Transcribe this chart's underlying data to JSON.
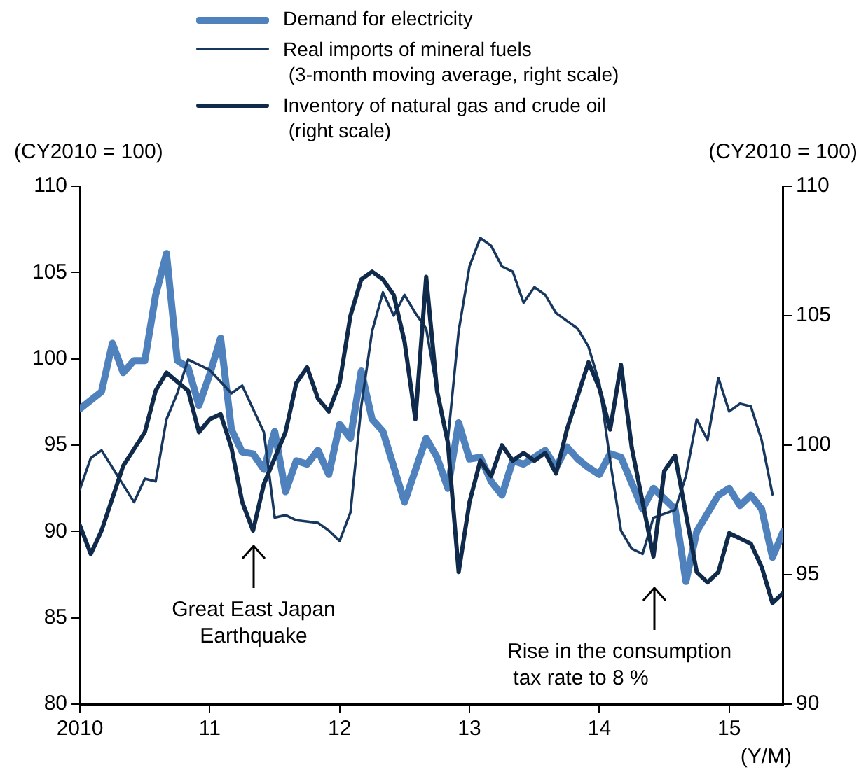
{
  "chart_data": {
    "type": "line",
    "xlabel": "(Y/M)",
    "ylabel": "(CY2010 = 100)",
    "y2label": "(CY2010 = 100)",
    "xlim": [
      "2010-01",
      "2015-06"
    ],
    "xticks": [
      {
        "value": "2010-01",
        "label": "2010"
      },
      {
        "value": "2011-01",
        "label": "11"
      },
      {
        "value": "2012-01",
        "label": "12"
      },
      {
        "value": "2013-01",
        "label": "13"
      },
      {
        "value": "2014-01",
        "label": "14"
      },
      {
        "value": "2015-01",
        "label": "15"
      }
    ],
    "ylim": [
      80,
      110
    ],
    "yticks": [
      80,
      85,
      90,
      95,
      100,
      105,
      110
    ],
    "y2lim": [
      90,
      110
    ],
    "y2ticks": [
      90,
      95,
      100,
      105,
      110
    ],
    "grid": false,
    "legend": "top",
    "marker": "none",
    "line_style": "solid",
    "series": [
      {
        "name": "Demand for electricity",
        "color": "#4f81bd",
        "x": [
          "2010-01",
          "2010-03",
          "2010-04",
          "2010-05",
          "2010-06",
          "2010-07",
          "2010-08",
          "2010-09",
          "2010-10",
          "2010-11",
          "2010-12",
          "2011-01",
          "2011-02",
          "2011-03",
          "2011-04",
          "2011-05",
          "2011-06",
          "2011-07",
          "2011-08",
          "2011-09",
          "2011-10",
          "2011-11",
          "2011-12",
          "2012-01",
          "2012-02",
          "2012-03",
          "2012-04",
          "2012-05",
          "2012-07",
          "2012-09",
          "2012-10",
          "2012-11",
          "2012-12",
          "2013-01",
          "2013-02",
          "2013-03",
          "2013-04",
          "2013-05",
          "2013-06",
          "2013-08",
          "2013-09",
          "2013-10",
          "2013-11",
          "2013-12",
          "2014-01",
          "2014-02",
          "2014-03",
          "2014-05",
          "2014-06",
          "2014-08",
          "2014-09",
          "2014-10",
          "2014-12",
          "2015-01",
          "2015-02",
          "2015-03",
          "2015-04",
          "2015-05",
          "2015-06"
        ],
        "values": [
          97.1,
          98.1,
          100.9,
          99.2,
          99.9,
          99.9,
          103.7,
          106.1,
          99.9,
          99.5,
          97.3,
          99.1,
          101.2,
          95.9,
          94.6,
          94.5,
          93.6,
          95.8,
          92.3,
          94.1,
          93.9,
          94.7,
          93.3,
          96.2,
          95.4,
          99.3,
          96.5,
          95.8,
          91.7,
          95.4,
          94.3,
          92.5,
          96.3,
          94.2,
          94.3,
          92.9,
          92.1,
          94.1,
          93.9,
          94.7,
          93.7,
          94.9,
          94.2,
          93.7,
          93.3,
          94.5,
          94.3,
          91.3,
          92.5,
          91.3,
          87.1,
          90.0,
          92.1,
          92.5,
          91.5,
          92.1,
          91.3,
          88.5,
          90.0
        ]
      },
      {
        "name": "Real imports of mineral fuels\n (3-month moving average, right scale)",
        "color": "#17375e",
        "axis": "y2",
        "x": [
          "2010-01",
          "2010-02",
          "2010-03",
          "2010-06",
          "2010-07",
          "2010-08",
          "2010-09",
          "2010-10",
          "2010-11",
          "2011-01",
          "2011-03",
          "2011-04",
          "2011-06",
          "2011-07",
          "2011-08",
          "2011-09",
          "2011-11",
          "2011-12",
          "2012-01",
          "2012-02",
          "2012-03",
          "2012-04",
          "2012-05",
          "2012-06",
          "2012-07",
          "2012-08",
          "2012-09",
          "2012-10",
          "2012-11",
          "2012-12",
          "2013-01",
          "2013-02",
          "2013-03",
          "2013-04",
          "2013-05",
          "2013-06",
          "2013-07",
          "2013-08",
          "2013-09",
          "2013-10",
          "2013-11",
          "2013-12",
          "2014-01",
          "2014-02",
          "2014-03",
          "2014-04",
          "2014-05",
          "2014-06",
          "2014-08",
          "2014-09",
          "2014-10",
          "2014-11",
          "2014-12",
          "2015-01",
          "2015-02",
          "2015-03",
          "2015-04",
          "2015-05"
        ],
        "values": [
          98.3,
          99.5,
          99.8,
          97.8,
          98.7,
          98.6,
          101.0,
          102.0,
          103.3,
          102.9,
          102.0,
          102.3,
          100.5,
          97.2,
          97.3,
          97.1,
          97.0,
          96.7,
          96.3,
          97.4,
          101.5,
          104.4,
          105.9,
          105.0,
          105.8,
          105.1,
          104.5,
          102.1,
          100.2,
          104.4,
          106.9,
          108.0,
          107.7,
          106.9,
          106.7,
          105.5,
          106.1,
          105.8,
          105.1,
          104.8,
          104.5,
          103.8,
          102.4,
          99.4,
          96.7,
          96.0,
          95.8,
          97.2,
          97.5,
          98.8,
          101.0,
          100.2,
          102.6,
          101.3,
          101.6,
          101.5,
          100.2,
          98.1
        ]
      },
      {
        "name": "Inventory of natural gas and crude oil\n (right scale)",
        "color": "#0f2a4a",
        "axis": "y2",
        "x": [
          "2010-01",
          "2010-02",
          "2010-03",
          "2010-05",
          "2010-07",
          "2010-08",
          "2010-09",
          "2010-11",
          "2010-12",
          "2011-01",
          "2011-02",
          "2011-03",
          "2011-04",
          "2011-05",
          "2011-06",
          "2011-08",
          "2011-09",
          "2011-10",
          "2011-11",
          "2011-12",
          "2012-01",
          "2012-02",
          "2012-03",
          "2012-04",
          "2012-05",
          "2012-06",
          "2012-07",
          "2012-08",
          "2012-09",
          "2012-10",
          "2012-11",
          "2012-12",
          "2013-01",
          "2013-02",
          "2013-03",
          "2013-04",
          "2013-05",
          "2013-06",
          "2013-07",
          "2013-08",
          "2013-09",
          "2013-10",
          "2013-12",
          "2014-01",
          "2014-02",
          "2014-03",
          "2014-04",
          "2014-06",
          "2014-07",
          "2014-08",
          "2014-10",
          "2014-11",
          "2014-12",
          "2015-01",
          "2015-03",
          "2015-04",
          "2015-05",
          "2015-06"
        ],
        "values": [
          96.9,
          95.8,
          96.7,
          99.2,
          100.5,
          102.1,
          102.8,
          102.1,
          100.5,
          101.0,
          101.2,
          99.9,
          97.8,
          96.7,
          98.5,
          100.5,
          102.4,
          103.0,
          101.8,
          101.3,
          102.4,
          105.0,
          106.4,
          106.7,
          106.4,
          105.8,
          104.0,
          101.0,
          106.5,
          102.1,
          100.1,
          95.1,
          97.8,
          99.4,
          98.8,
          100.0,
          99.4,
          99.7,
          99.4,
          99.7,
          98.9,
          100.6,
          103.2,
          102.2,
          100.6,
          103.1,
          99.9,
          95.7,
          99.0,
          99.6,
          95.1,
          94.7,
          95.1,
          96.6,
          96.2,
          95.3,
          93.9,
          94.3
        ]
      }
    ],
    "annotations": [
      "Great East Japan\nEarthquake",
      "Rise in the consumption\n tax rate to 8 %"
    ]
  }
}
